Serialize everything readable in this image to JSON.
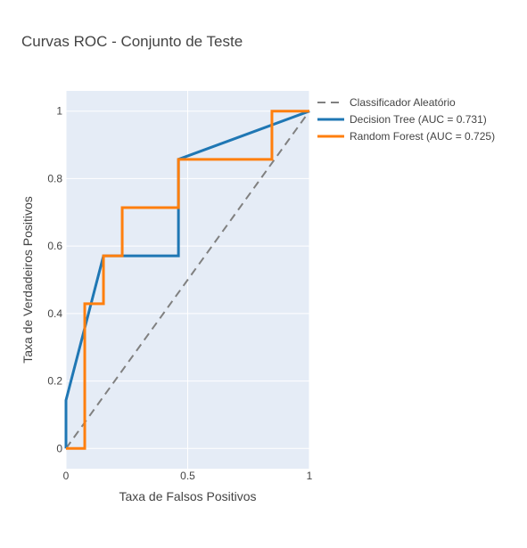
{
  "chart_data": {
    "type": "line",
    "title": "Curvas ROC - Conjunto de Teste",
    "xlabel": "Taxa de Falsos Positivos",
    "ylabel": "Taxa de Verdadeiros Positivos",
    "xlim": [
      0,
      1
    ],
    "ylim": [
      -0.06,
      1.06
    ],
    "xticks": [
      0,
      0.5,
      1
    ],
    "xtick_labels": [
      "0",
      "0.5",
      "1"
    ],
    "yticks": [
      0,
      0.2,
      0.4,
      0.6,
      0.8,
      1
    ],
    "ytick_labels": [
      "0",
      "0.2",
      "0.4",
      "0.6",
      "0.8",
      "1"
    ],
    "grid": true,
    "legend_position": "right",
    "series": [
      {
        "name": "Classificador Aleatório",
        "color": "#808080",
        "dash": "dash",
        "x": [
          0,
          1
        ],
        "y": [
          0,
          1
        ]
      },
      {
        "name": "Decision Tree (AUC = 0.731)",
        "color": "#1f77b4",
        "dash": "solid",
        "x": [
          0,
          0,
          0.154,
          0.462,
          0.462,
          1
        ],
        "y": [
          0,
          0.143,
          0.571,
          0.571,
          0.857,
          1
        ]
      },
      {
        "name": "Random Forest (AUC = 0.725)",
        "color": "#ff7f0e",
        "dash": "solid",
        "x": [
          0,
          0.077,
          0.077,
          0.154,
          0.154,
          0.231,
          0.231,
          0.462,
          0.462,
          0.846,
          0.846,
          1
        ],
        "y": [
          0,
          0,
          0.429,
          0.429,
          0.571,
          0.571,
          0.714,
          0.714,
          0.857,
          0.857,
          1,
          1
        ]
      }
    ]
  }
}
